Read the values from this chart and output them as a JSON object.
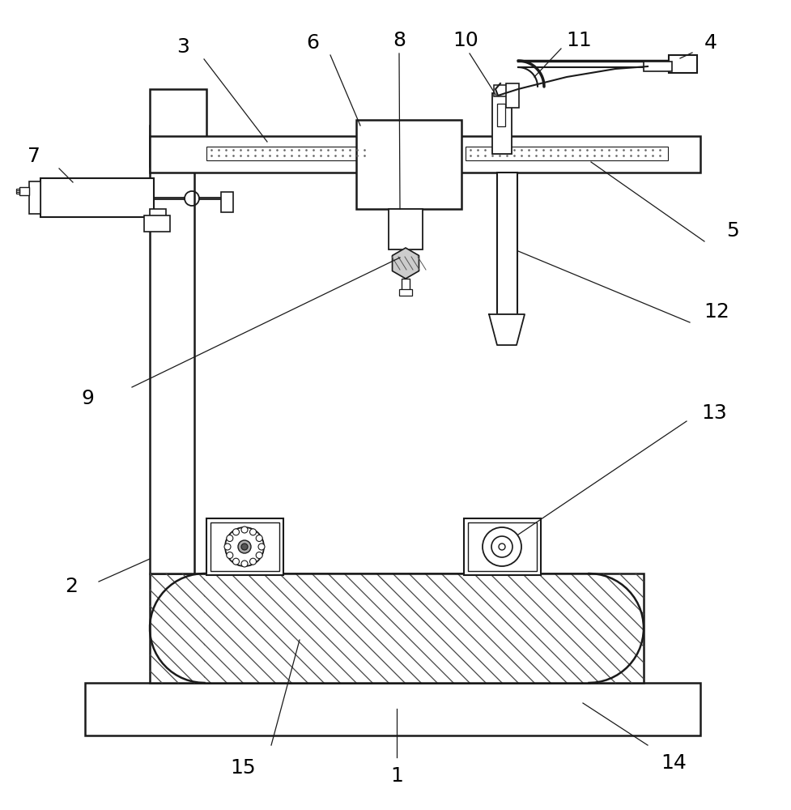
{
  "bg_color": "#ffffff",
  "line_color": "#1a1a1a",
  "figsize": [
    9.78,
    10.0
  ],
  "dpi": 100
}
